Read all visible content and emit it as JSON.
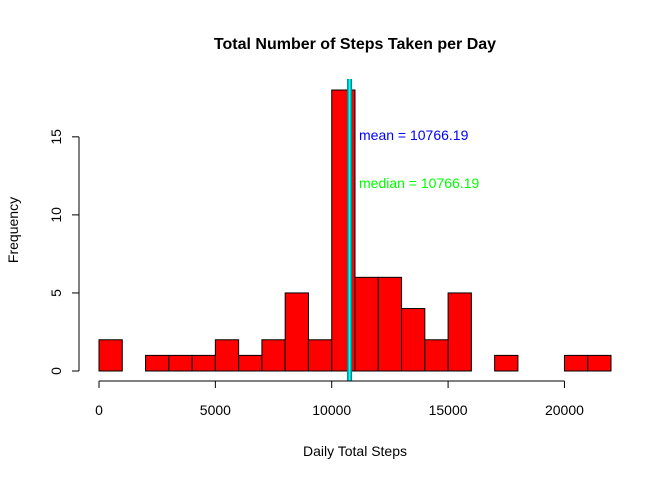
{
  "chart_data": {
    "type": "bar",
    "title": "Total Number of Steps Taken per Day",
    "xlabel": "Daily Total Steps",
    "ylabel": "Frequency",
    "bin_width": 1000,
    "bin_starts": [
      0,
      1000,
      2000,
      3000,
      4000,
      5000,
      6000,
      7000,
      8000,
      9000,
      10000,
      11000,
      12000,
      13000,
      14000,
      15000,
      16000,
      17000,
      18000,
      19000,
      20000,
      21000
    ],
    "values": [
      2,
      0,
      1,
      1,
      1,
      2,
      1,
      2,
      5,
      2,
      18,
      6,
      6,
      4,
      2,
      5,
      0,
      1,
      0,
      0,
      1,
      1
    ],
    "xlim": [
      0,
      22000
    ],
    "ylim": [
      0,
      18
    ],
    "x_ticks": [
      "0",
      "5000",
      "10000",
      "15000",
      "20000"
    ],
    "y_ticks": [
      "0",
      "5",
      "10",
      "15"
    ],
    "bar_color": "#ff0000",
    "mean_line": 10766.19,
    "median_line": 10766.19,
    "mean_label": "mean =  10766.19",
    "median_label": "median =  10766.19",
    "mean_color": "#0000ff",
    "median_color": "#00ff00",
    "line_outer_color": "#008b8b",
    "line_inner_color": "#00ffff",
    "grid": false,
    "legend": "none"
  }
}
